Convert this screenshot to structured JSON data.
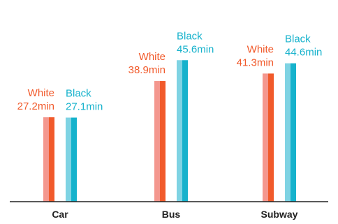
{
  "chart_data": {
    "type": "bar",
    "categories": [
      "Car",
      "Bus",
      "Subway"
    ],
    "series": [
      {
        "name": "White",
        "values": [
          27.2,
          38.9,
          41.3
        ],
        "labels": [
          "27.2min",
          "38.9min",
          "41.3min"
        ]
      },
      {
        "name": "Black",
        "values": [
          27.1,
          45.6,
          44.6
        ],
        "labels": [
          "27.1min",
          "45.6min",
          "44.6min"
        ]
      }
    ],
    "unit": "min",
    "title": "",
    "xlabel": "",
    "ylabel": "",
    "ylim": [
      0,
      65
    ],
    "grid": false,
    "legend": "none",
    "colors": {
      "White": {
        "light": "#f4978e",
        "dark": "#f15a2b"
      },
      "Black": {
        "light": "#7fd3e3",
        "dark": "#16b2cc"
      },
      "axis": "#222222"
    }
  }
}
